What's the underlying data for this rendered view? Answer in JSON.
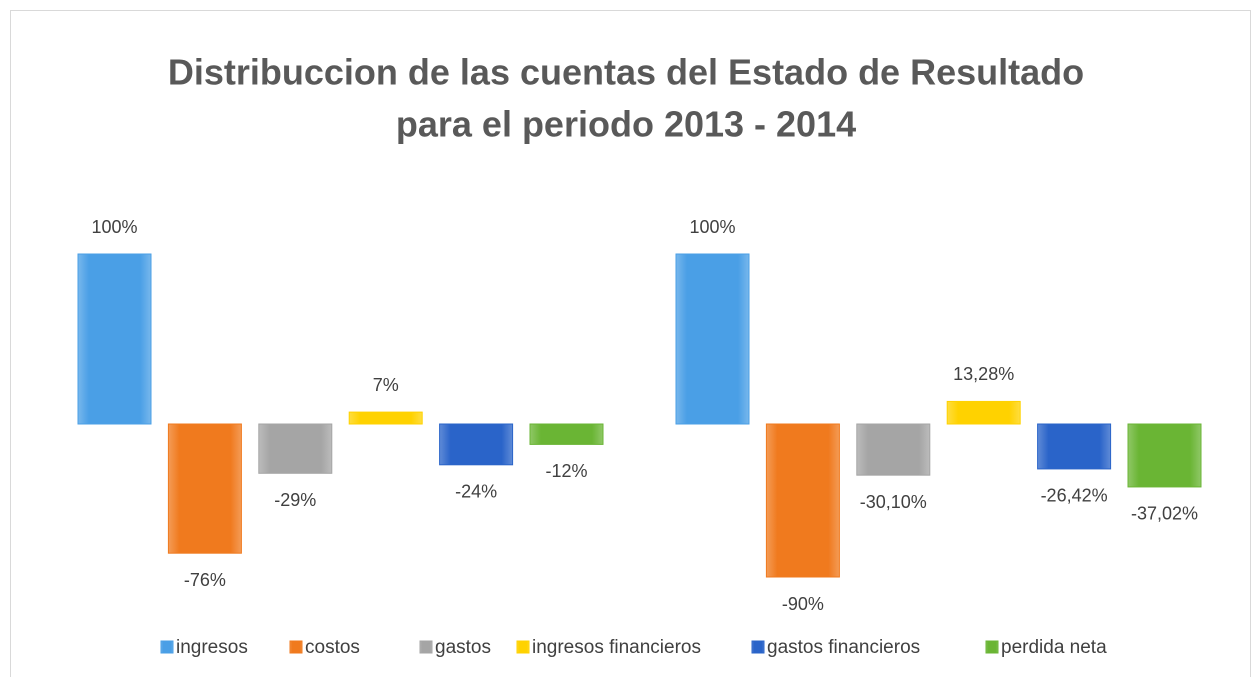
{
  "chart_data": {
    "type": "bar",
    "title": [
      "Distribuccion de las cuentas del Estado de Resultado",
      "para el periodo 2013 - 2014"
    ],
    "categories": [
      null,
      null
    ],
    "series": [
      {
        "name": "ingresos",
        "color": "#4a9fe6",
        "values": [
          100,
          100
        ],
        "value_labels": [
          "100%",
          "100%"
        ]
      },
      {
        "name": "costos",
        "color": "#f07a1e",
        "values": [
          -76,
          -90
        ],
        "value_labels": [
          "-76%",
          "-90%"
        ]
      },
      {
        "name": "gastos",
        "color": "#a5a5a5",
        "values": [
          -29,
          -30.1
        ],
        "value_labels": [
          "-29%",
          "-30,10%"
        ]
      },
      {
        "name": "ingresos financieros",
        "color": "#ffd200",
        "values": [
          7,
          13.28
        ],
        "value_labels": [
          "7%",
          "13,28%"
        ]
      },
      {
        "name": "gastos financieros",
        "color": "#2a64c9",
        "values": [
          -24,
          -26.42
        ],
        "value_labels": [
          "-24%",
          "-26,42%"
        ]
      },
      {
        "name": "perdida neta",
        "color": "#6ab534",
        "values": [
          -12,
          -37.02
        ],
        "value_labels": [
          "-12%",
          "-37,02%"
        ]
      }
    ],
    "legend": "bottom"
  }
}
